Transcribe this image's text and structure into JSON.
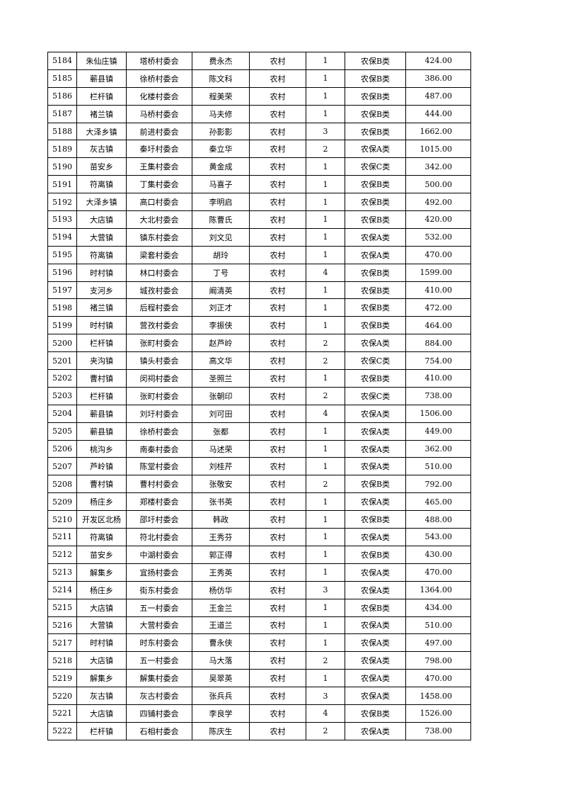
{
  "table": {
    "rows": [
      [
        "5184",
        "朱仙庄镇",
        "塔桥村委会",
        "费永杰",
        "农村",
        "1",
        "农保B类",
        "424.00"
      ],
      [
        "5185",
        "蕲县镇",
        "徐桥村委会",
        "陈文科",
        "农村",
        "1",
        "农保B类",
        "386.00"
      ],
      [
        "5186",
        "栏杆镇",
        "化楼村委会",
        "程美荣",
        "农村",
        "1",
        "农保B类",
        "487.00"
      ],
      [
        "5187",
        "褚兰镇",
        "马桥村委会",
        "马夫修",
        "农村",
        "1",
        "农保B类",
        "444.00"
      ],
      [
        "5188",
        "大泽乡镇",
        "前进村委会",
        "孙影影",
        "农村",
        "3",
        "农保B类",
        "1662.00"
      ],
      [
        "5189",
        "灰古镇",
        "秦圩村委会",
        "秦立华",
        "农村",
        "2",
        "农保A类",
        "1015.00"
      ],
      [
        "5190",
        "苗安乡",
        "王集村委会",
        "黄金成",
        "农村",
        "1",
        "农保C类",
        "342.00"
      ],
      [
        "5191",
        "符离镇",
        "丁集村委会",
        "马喜子",
        "农村",
        "1",
        "农保B类",
        "500.00"
      ],
      [
        "5192",
        "大泽乡镇",
        "高口村委会",
        "李明启",
        "农村",
        "1",
        "农保B类",
        "492.00"
      ],
      [
        "5193",
        "大店镇",
        "大北村委会",
        "陈曹氏",
        "农村",
        "1",
        "农保B类",
        "420.00"
      ],
      [
        "5194",
        "大营镇",
        "镇东村委会",
        "刘文见",
        "农村",
        "1",
        "农保A类",
        "532.00"
      ],
      [
        "5195",
        "符离镇",
        "梁套村委会",
        "胡玲",
        "农村",
        "1",
        "农保A类",
        "470.00"
      ],
      [
        "5196",
        "时村镇",
        "林口村委会",
        "丁号",
        "农村",
        "4",
        "农保B类",
        "1599.00"
      ],
      [
        "5197",
        "支河乡",
        "城孜村委会",
        "阚清英",
        "农村",
        "1",
        "农保B类",
        "410.00"
      ],
      [
        "5198",
        "褚兰镇",
        "后程村委会",
        "刘正才",
        "农村",
        "1",
        "农保B类",
        "472.00"
      ],
      [
        "5199",
        "时村镇",
        "营孜村委会",
        "李振侠",
        "农村",
        "1",
        "农保B类",
        "464.00"
      ],
      [
        "5200",
        "栏杆镇",
        "张町村委会",
        "赵芦岭",
        "农村",
        "2",
        "农保A类",
        "884.00"
      ],
      [
        "5201",
        "夹沟镇",
        "镇头村委会",
        "高文华",
        "农村",
        "2",
        "农保C类",
        "754.00"
      ],
      [
        "5202",
        "曹村镇",
        "闵祠村委会",
        "圣照兰",
        "农村",
        "1",
        "农保B类",
        "410.00"
      ],
      [
        "5203",
        "栏杆镇",
        "张町村委会",
        "张朝印",
        "农村",
        "2",
        "农保C类",
        "738.00"
      ],
      [
        "5204",
        "蕲县镇",
        "刘圩村委会",
        "刘可田",
        "农村",
        "4",
        "农保A类",
        "1506.00"
      ],
      [
        "5205",
        "蕲县镇",
        "徐桥村委会",
        "张都",
        "农村",
        "1",
        "农保A类",
        "449.00"
      ],
      [
        "5206",
        "桃沟乡",
        "南秦村委会",
        "马述荣",
        "农村",
        "1",
        "农保A类",
        "362.00"
      ],
      [
        "5207",
        "芦岭镇",
        "陈堂村委会",
        "刘桂芹",
        "农村",
        "1",
        "农保A类",
        "510.00"
      ],
      [
        "5208",
        "曹村镇",
        "曹村村委会",
        "张敬安",
        "农村",
        "2",
        "农保B类",
        "792.00"
      ],
      [
        "5209",
        "杨庄乡",
        "郑楼村委会",
        "张书英",
        "农村",
        "1",
        "农保A类",
        "465.00"
      ],
      [
        "5210",
        "开发区北杨",
        "邵圩村委会",
        "韩政",
        "农村",
        "1",
        "农保B类",
        "488.00"
      ],
      [
        "5211",
        "符离镇",
        "符北村委会",
        "王秀芬",
        "农村",
        "1",
        "农保A类",
        "543.00"
      ],
      [
        "5212",
        "苗安乡",
        "中湖村委会",
        "郭正得",
        "农村",
        "1",
        "农保B类",
        "430.00"
      ],
      [
        "5213",
        "解集乡",
        "宜扬村委会",
        "王秀英",
        "农村",
        "1",
        "农保A类",
        "470.00"
      ],
      [
        "5214",
        "杨庄乡",
        "街东村委会",
        "杨仿华",
        "农村",
        "3",
        "农保A类",
        "1364.00"
      ],
      [
        "5215",
        "大店镇",
        "五一村委会",
        "王金兰",
        "农村",
        "1",
        "农保B类",
        "434.00"
      ],
      [
        "5216",
        "大营镇",
        "大营村委会",
        "王道兰",
        "农村",
        "1",
        "农保A类",
        "510.00"
      ],
      [
        "5217",
        "时村镇",
        "时东村委会",
        "曹永侠",
        "农村",
        "1",
        "农保A类",
        "497.00"
      ],
      [
        "5218",
        "大店镇",
        "五一村委会",
        "马大落",
        "农村",
        "2",
        "农保A类",
        "798.00"
      ],
      [
        "5219",
        "解集乡",
        "解集村委会",
        "吴翠英",
        "农村",
        "1",
        "农保A类",
        "470.00"
      ],
      [
        "5220",
        "灰古镇",
        "灰古村委会",
        "张兵兵",
        "农村",
        "3",
        "农保A类",
        "1458.00"
      ],
      [
        "5221",
        "大店镇",
        "四铺村委会",
        "李良学",
        "农村",
        "4",
        "农保B类",
        "1526.00"
      ],
      [
        "5222",
        "栏杆镇",
        "石相村委会",
        "陈庆生",
        "农村",
        "2",
        "农保A类",
        "738.00"
      ]
    ]
  }
}
